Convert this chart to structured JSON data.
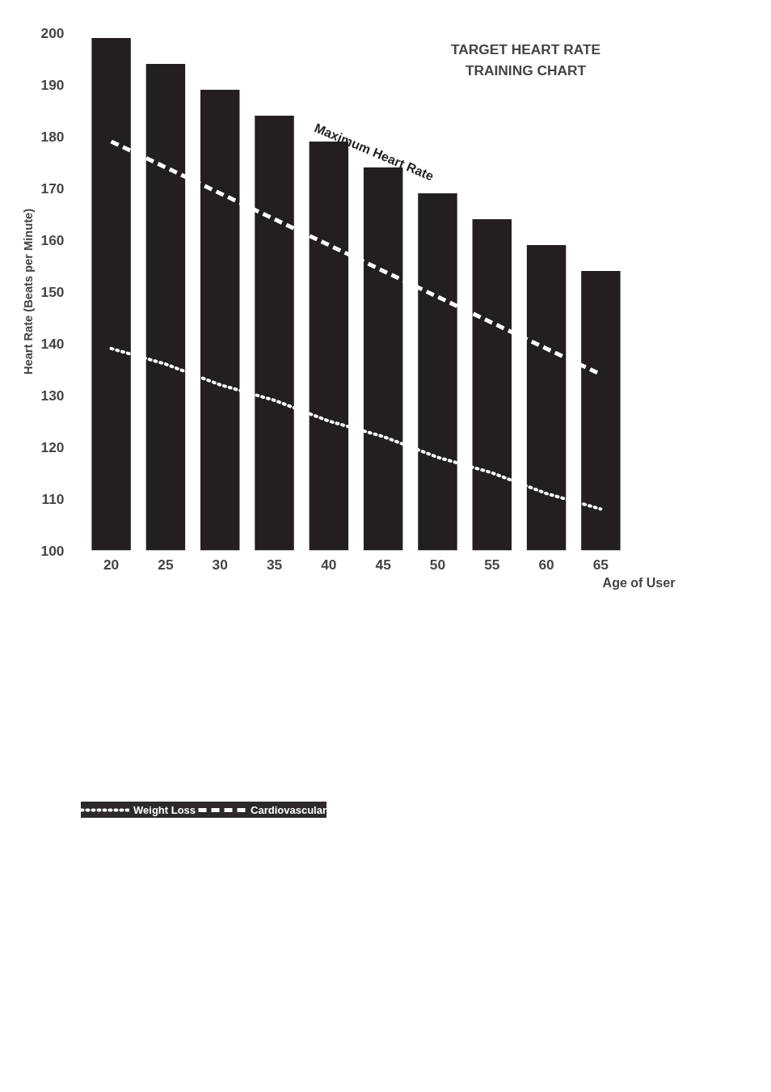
{
  "chart_data": {
    "type": "bar",
    "title": "TARGET HEART RATE\nTRAINING CHART",
    "xlabel": "Age of User",
    "ylabel": "Heart Rate (Beats per Minute)",
    "categories": [
      "20",
      "25",
      "30",
      "35",
      "40",
      "45",
      "50",
      "55",
      "60",
      "65"
    ],
    "ylim": [
      100,
      200
    ],
    "yticks": [
      100,
      110,
      120,
      130,
      140,
      150,
      160,
      170,
      180,
      190,
      200
    ],
    "grid": false,
    "legend": "bottom left",
    "series": [
      {
        "name": "Maximum Heart Rate",
        "color": "#231f20",
        "values": [
          199,
          194,
          189,
          184,
          179,
          174,
          169,
          164,
          159,
          154
        ]
      },
      {
        "name": "Cardiovascular",
        "type": "line",
        "color": "#ffffff",
        "line_style": "dashed",
        "values": [
          179,
          174,
          169,
          164,
          159,
          154,
          149,
          144,
          139,
          134
        ]
      },
      {
        "name": "Weight Loss",
        "type": "line",
        "color": "#ffffff",
        "line_style": "dotted",
        "values": [
          139,
          136,
          132,
          129,
          125,
          122,
          118,
          115,
          111,
          108
        ]
      }
    ]
  }
}
